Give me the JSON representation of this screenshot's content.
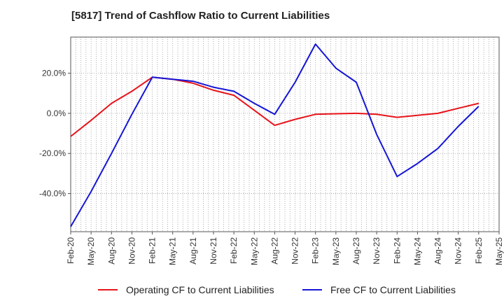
{
  "chart_data": {
    "type": "line",
    "title": "[5817]  Trend of Cashflow Ratio to Current Liabilities",
    "x_labels": [
      "Feb-20",
      "May-20",
      "Aug-20",
      "Nov-20",
      "Feb-21",
      "May-21",
      "Aug-21",
      "Nov-21",
      "Feb-22",
      "May-22",
      "Aug-22",
      "Nov-22",
      "Feb-23",
      "May-23",
      "Aug-23",
      "Nov-23",
      "Feb-24",
      "May-24",
      "Aug-24",
      "Nov-24",
      "Feb-25",
      "May-25"
    ],
    "y_ticks": [
      -40,
      -20,
      0,
      20
    ],
    "y_tick_labels": [
      "-40.0%",
      "-20.0%",
      "0.0%",
      "20.0%"
    ],
    "ylim": [
      -59,
      38
    ],
    "grid": true,
    "legend_position": "bottom",
    "series": [
      {
        "name": "Operating CF to Current Liabilities",
        "color": "#e8141b",
        "values": [
          -11.5,
          -3.5,
          5.0,
          11.0,
          18.0,
          17.0,
          15.0,
          11.5,
          9.0,
          1.5,
          -6.0,
          -3.0,
          -0.5,
          -0.2,
          0.0,
          -0.5,
          -2.0,
          -1.0,
          0.0,
          2.5,
          5.0,
          null
        ]
      },
      {
        "name": "Free CF to Current Liabilities",
        "color": "#1515d6",
        "values": [
          -56.5,
          -39.0,
          -20.0,
          -0.5,
          18.0,
          17.0,
          16.0,
          13.0,
          11.0,
          5.0,
          -0.5,
          15.5,
          34.5,
          22.5,
          15.5,
          -10.5,
          -31.5,
          -25.0,
          -17.5,
          -6.5,
          3.5,
          null
        ]
      }
    ]
  }
}
